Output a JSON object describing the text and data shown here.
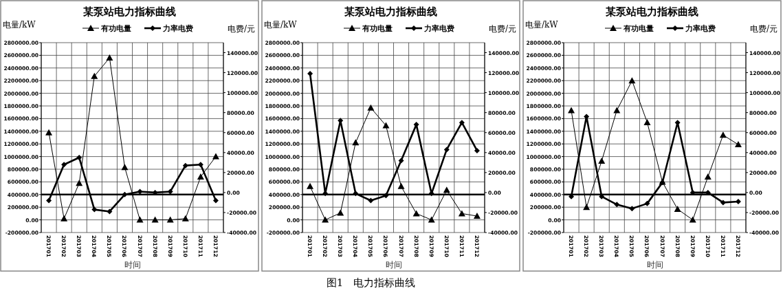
{
  "chart_data": [
    {
      "type": "line",
      "title": "某泵站电力指标曲线",
      "xlabel": "时间",
      "ylabel": "电量/kW",
      "y2label": "电费/元",
      "categories": [
        "201701",
        "201702",
        "201703",
        "201704",
        "201705",
        "201706",
        "201707",
        "201708",
        "201709",
        "201710",
        "201711",
        "201712"
      ],
      "series": [
        {
          "name": "有功电量",
          "color": "#000000",
          "marker": "triangle",
          "values": [
            1380000,
            20000,
            580000,
            2270000,
            2560000,
            830000,
            0,
            0,
            0,
            20000,
            680000,
            1000000
          ]
        },
        {
          "name": "力率电费",
          "color": "#000000",
          "marker": "diamond",
          "axis": "y2",
          "values": [
            -8000,
            28000,
            35000,
            -17000,
            -19000,
            -2000,
            1000,
            0,
            1000,
            27000,
            28000,
            -8000
          ]
        }
      ],
      "ylim": [
        -200000,
        2800000
      ],
      "yticks": [
        {
          "value": -200000,
          "label": "-200000.00"
        },
        {
          "value": 0,
          "label": "0.00"
        },
        {
          "value": 200000,
          "label": "200000.00"
        },
        {
          "value": 400000,
          "label": "400000.00"
        },
        {
          "value": 600000,
          "label": "600000.00"
        },
        {
          "value": 800000,
          "label": "800000.00"
        },
        {
          "value": 1000000,
          "label": "1000000.00"
        },
        {
          "value": 1200000,
          "label": "1200000.00"
        },
        {
          "value": 1400000,
          "label": "1400000.00"
        },
        {
          "value": 1600000,
          "label": "1600000.00"
        },
        {
          "value": 1800000,
          "label": "1800000.00"
        },
        {
          "value": 2000000,
          "label": "2000000.00"
        },
        {
          "value": 2200000,
          "label": "2200000.00"
        },
        {
          "value": 2400000,
          "label": "2400000.00"
        },
        {
          "value": 2600000,
          "label": "2600000.00"
        },
        {
          "value": 2800000,
          "label": "2800000.00"
        }
      ],
      "y2lim": [
        -40000,
        150000
      ],
      "y2ticks": [
        {
          "value": -40000,
          "label": "-40000.00"
        },
        {
          "value": -20000,
          "label": "-20000.00"
        },
        {
          "value": 0,
          "label": "0.00"
        },
        {
          "value": 20000,
          "label": "20000.00"
        },
        {
          "value": 40000,
          "label": "40000.00"
        },
        {
          "value": 60000,
          "label": "60000.00"
        },
        {
          "value": 80000,
          "label": "80000.00"
        },
        {
          "value": 100000,
          "label": "100000.00"
        },
        {
          "value": 120000,
          "label": "120000.00"
        },
        {
          "value": 140000,
          "label": "140000.00"
        }
      ],
      "ref_lines": [
        {
          "axis": "y",
          "value": 400000
        }
      ],
      "grid": true,
      "legend": "top",
      "annotations": [
        "图1　电力指标曲线"
      ]
    },
    {
      "type": "line",
      "title": "某泵站电力指标曲线",
      "xlabel": "时间",
      "ylabel": "电量/kW",
      "y2label": "电费/元",
      "categories": [
        "201701",
        "201702",
        "201703",
        "201704",
        "201705",
        "201706",
        "201707",
        "201708",
        "201709",
        "201710",
        "201711",
        "201712"
      ],
      "series": [
        {
          "name": "有功电量",
          "color": "#000000",
          "marker": "triangle",
          "values": [
            530000,
            0,
            110000,
            1220000,
            1770000,
            1490000,
            530000,
            100000,
            0,
            470000,
            100000,
            60000
          ]
        },
        {
          "name": "力率电费",
          "color": "#000000",
          "marker": "diamond",
          "axis": "y2",
          "values": [
            119000,
            -1000,
            72000,
            -1000,
            -8000,
            -3000,
            32000,
            68000,
            -1000,
            43000,
            70000,
            42000
          ]
        }
      ],
      "ylim": [
        -200000,
        2800000
      ],
      "yticks": [
        {
          "value": -200000,
          "label": "-200000.00"
        },
        {
          "value": 0,
          "label": "0.00"
        },
        {
          "value": 200000,
          "label": "200000.00"
        },
        {
          "value": 400000,
          "label": "400000.00"
        },
        {
          "value": 600000,
          "label": "600000.00"
        },
        {
          "value": 800000,
          "label": "800000.00"
        },
        {
          "value": 1000000,
          "label": "1000000.00"
        },
        {
          "value": 1200000,
          "label": "1200000.00"
        },
        {
          "value": 1400000,
          "label": "1400000.00"
        },
        {
          "value": 1600000,
          "label": "1600000.00"
        },
        {
          "value": 1800000,
          "label": "1800000.00"
        },
        {
          "value": 2000000,
          "label": "2000000.00"
        },
        {
          "value": 2200000,
          "label": "2200000.00"
        },
        {
          "value": 2400000,
          "label": "2400000.00"
        },
        {
          "value": 2600000,
          "label": "2600000.00"
        },
        {
          "value": 2800000,
          "label": "2800000.00"
        }
      ],
      "y2lim": [
        -40000,
        150000
      ],
      "y2ticks": [
        {
          "value": -40000,
          "label": "-40000.00"
        },
        {
          "value": -20000,
          "label": "-20000.00"
        },
        {
          "value": 0,
          "label": "0.00"
        },
        {
          "value": 20000,
          "label": "20000.00"
        },
        {
          "value": 40000,
          "label": "40000.00"
        },
        {
          "value": 60000,
          "label": "60000.00"
        },
        {
          "value": 80000,
          "label": "80000.00"
        },
        {
          "value": 100000,
          "label": "100000.00"
        },
        {
          "value": 120000,
          "label": "120000.00"
        },
        {
          "value": 140000,
          "label": "140000.00"
        }
      ],
      "ref_lines": [
        {
          "axis": "y",
          "value": 400000
        }
      ],
      "grid": true,
      "legend": "top"
    },
    {
      "type": "line",
      "title": "某泵站电力指标曲线",
      "xlabel": "时间",
      "ylabel": "电量/kW",
      "y2label": "电费/元",
      "categories": [
        "201701",
        "201702",
        "201703",
        "201704",
        "201705",
        "201706",
        "201707",
        "201708",
        "201709",
        "201710",
        "201711",
        "201712"
      ],
      "series": [
        {
          "name": "有功电量",
          "color": "#000000",
          "marker": "triangle",
          "values": [
            1730000,
            200000,
            930000,
            1730000,
            2200000,
            1540000,
            600000,
            170000,
            0,
            680000,
            1340000,
            1190000
          ]
        },
        {
          "name": "力率电费",
          "color": "#000000",
          "marker": "diamond",
          "axis": "y2",
          "values": [
            -4000,
            76000,
            -4000,
            -12000,
            -16000,
            -11000,
            10000,
            70000,
            0,
            0,
            -10000,
            -9000
          ]
        }
      ],
      "ylim": [
        -200000,
        2800000
      ],
      "yticks": [
        {
          "value": -200000,
          "label": "-200000.00"
        },
        {
          "value": 0,
          "label": "0.00"
        },
        {
          "value": 200000,
          "label": "200000.00"
        },
        {
          "value": 400000,
          "label": "400000.00"
        },
        {
          "value": 600000,
          "label": "600000.00"
        },
        {
          "value": 800000,
          "label": "800000.00"
        },
        {
          "value": 1000000,
          "label": "1000000.00"
        },
        {
          "value": 1200000,
          "label": "1200000.00"
        },
        {
          "value": 1400000,
          "label": "1400000.00"
        },
        {
          "value": 1600000,
          "label": "1600000.00"
        },
        {
          "value": 1800000,
          "label": "1800000.00"
        },
        {
          "value": 2000000,
          "label": "2000000.00"
        },
        {
          "value": 2200000,
          "label": "2200000.00"
        },
        {
          "value": 2400000,
          "label": "2400000.00"
        },
        {
          "value": 2600000,
          "label": "2600000.00"
        },
        {
          "value": 2800000,
          "label": "2800000.00"
        }
      ],
      "y2lim": [
        -40000,
        150000
      ],
      "y2ticks": [
        {
          "value": -40000,
          "label": "-40000.00"
        },
        {
          "value": -20000,
          "label": "-20000.00"
        },
        {
          "value": 0,
          "label": "0.00"
        },
        {
          "value": 20000,
          "label": "20000.00"
        },
        {
          "value": 40000,
          "label": "40000.00"
        },
        {
          "value": 60000,
          "label": "60000.00"
        },
        {
          "value": 80000,
          "label": "80000.00"
        },
        {
          "value": 100000,
          "label": "100000.00"
        },
        {
          "value": 120000,
          "label": "120000.00"
        },
        {
          "value": 140000,
          "label": "140000.00"
        }
      ],
      "ref_lines": [
        {
          "axis": "y",
          "value": 400000
        }
      ],
      "grid": true,
      "legend": "top"
    }
  ]
}
